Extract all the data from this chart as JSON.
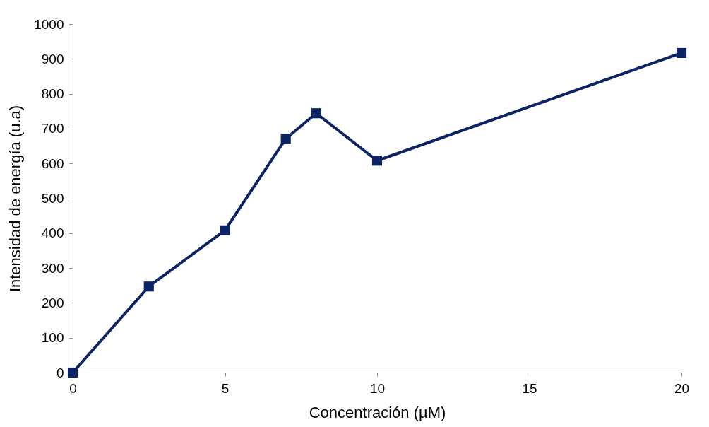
{
  "chart_data": {
    "type": "line",
    "xlabel": "Concentración (µM)",
    "ylabel": "Intensidad de energía (u.a)",
    "x": [
      0,
      2.5,
      5,
      7,
      8,
      10,
      20
    ],
    "series": [
      {
        "color": "#0c2364",
        "values": [
          0,
          247,
          408,
          671,
          744,
          608,
          917
        ]
      }
    ],
    "xlim": [
      0,
      20
    ],
    "xticks": [
      0,
      5,
      10,
      15,
      20
    ],
    "ylim": [
      0,
      1000
    ],
    "yticks": [
      0,
      100,
      200,
      300,
      400,
      500,
      600,
      700,
      800,
      900,
      1000
    ],
    "grid": false,
    "marker": "square",
    "line_style": "solid"
  }
}
